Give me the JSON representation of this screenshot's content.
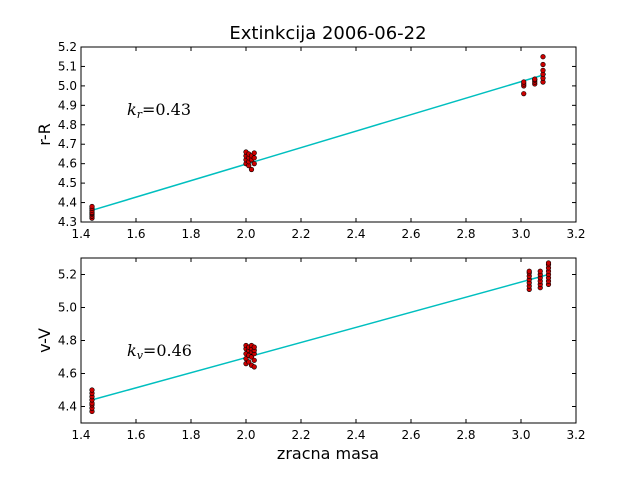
{
  "chart_data": [
    {
      "type": "scatter",
      "title": "Extinkcija 2006-06-22",
      "xlabel": "",
      "ylabel": "r-R",
      "xlim": [
        1.4,
        3.2
      ],
      "ylim": [
        4.3,
        5.2
      ],
      "xticks": [
        "1.4",
        "1.6",
        "1.8",
        "2.0",
        "2.2",
        "2.4",
        "2.6",
        "2.8",
        "3.0",
        "3.2"
      ],
      "yticks": [
        "4.3",
        "4.4",
        "4.5",
        "4.6",
        "4.7",
        "4.8",
        "4.9",
        "5.0",
        "5.1",
        "5.2"
      ],
      "annotation": {
        "symbol": "k",
        "subscript": "r",
        "rest": "=0.43"
      },
      "marker_color": "#cc0000",
      "line_color": "#00bfbf",
      "fit_line": {
        "x": [
          1.44,
          3.09
        ],
        "y": [
          4.36,
          5.06
        ]
      },
      "series": [
        {
          "points": [
            [
              1.44,
              4.32
            ],
            [
              1.44,
              4.33
            ],
            [
              1.44,
              4.34
            ],
            [
              1.44,
              4.345
            ],
            [
              1.44,
              4.35
            ],
            [
              1.44,
              4.36
            ],
            [
              1.44,
              4.37
            ],
            [
              1.44,
              4.38
            ],
            [
              2.0,
              4.6
            ],
            [
              2.0,
              4.62
            ],
            [
              2.0,
              4.64
            ],
            [
              2.0,
              4.66
            ],
            [
              2.01,
              4.59
            ],
            [
              2.01,
              4.61
            ],
            [
              2.01,
              4.63
            ],
            [
              2.01,
              4.65
            ],
            [
              2.02,
              4.57
            ],
            [
              2.02,
              4.62
            ],
            [
              2.02,
              4.64
            ],
            [
              2.03,
              4.6
            ],
            [
              2.03,
              4.63
            ],
            [
              2.03,
              4.655
            ],
            [
              3.01,
              4.96
            ],
            [
              3.01,
              5.0
            ],
            [
              3.01,
              5.01
            ],
            [
              3.01,
              5.02
            ],
            [
              3.05,
              5.01
            ],
            [
              3.05,
              5.02
            ],
            [
              3.05,
              5.03
            ],
            [
              3.05,
              5.035
            ],
            [
              3.08,
              5.02
            ],
            [
              3.08,
              5.04
            ],
            [
              3.08,
              5.06
            ],
            [
              3.08,
              5.08
            ],
            [
              3.08,
              5.11
            ],
            [
              3.08,
              5.15
            ]
          ]
        }
      ]
    },
    {
      "type": "scatter",
      "title": "",
      "xlabel": "zracna masa",
      "ylabel": "v-V",
      "xlim": [
        1.4,
        3.2
      ],
      "ylim": [
        4.3,
        5.3
      ],
      "xticks": [
        "1.4",
        "1.6",
        "1.8",
        "2.0",
        "2.2",
        "2.4",
        "2.6",
        "2.8",
        "3.0",
        "3.2"
      ],
      "yticks": [
        "4.4",
        "4.6",
        "4.8",
        "5.0",
        "5.2"
      ],
      "ytick_values": [
        4.4,
        4.6,
        4.8,
        5.0,
        5.2
      ],
      "annotation": {
        "symbol": "k",
        "subscript": "v",
        "rest": "=0.46"
      },
      "marker_color": "#cc0000",
      "line_color": "#00bfbf",
      "fit_line": {
        "x": [
          1.44,
          3.1
        ],
        "y": [
          4.44,
          5.2
        ]
      },
      "series": [
        {
          "points": [
            [
              1.44,
              4.37
            ],
            [
              1.44,
              4.39
            ],
            [
              1.44,
              4.41
            ],
            [
              1.44,
              4.42
            ],
            [
              1.44,
              4.44
            ],
            [
              1.44,
              4.46
            ],
            [
              1.44,
              4.48
            ],
            [
              1.44,
              4.5
            ],
            [
              2.0,
              4.66
            ],
            [
              2.0,
              4.69
            ],
            [
              2.0,
              4.72
            ],
            [
              2.0,
              4.75
            ],
            [
              2.0,
              4.77
            ],
            [
              2.01,
              4.67
            ],
            [
              2.01,
              4.71
            ],
            [
              2.01,
              4.74
            ],
            [
              2.01,
              4.76
            ],
            [
              2.02,
              4.65
            ],
            [
              2.02,
              4.7
            ],
            [
              2.02,
              4.73
            ],
            [
              2.02,
              4.75
            ],
            [
              2.02,
              4.77
            ],
            [
              2.03,
              4.64
            ],
            [
              2.03,
              4.68
            ],
            [
              2.03,
              4.72
            ],
            [
              2.03,
              4.74
            ],
            [
              2.03,
              4.76
            ],
            [
              3.03,
              5.11
            ],
            [
              3.03,
              5.13
            ],
            [
              3.03,
              5.15
            ],
            [
              3.03,
              5.17
            ],
            [
              3.03,
              5.19
            ],
            [
              3.03,
              5.21
            ],
            [
              3.03,
              5.22
            ],
            [
              3.07,
              5.12
            ],
            [
              3.07,
              5.14
            ],
            [
              3.07,
              5.16
            ],
            [
              3.07,
              5.18
            ],
            [
              3.07,
              5.2
            ],
            [
              3.07,
              5.22
            ],
            [
              3.1,
              5.14
            ],
            [
              3.1,
              5.16
            ],
            [
              3.1,
              5.18
            ],
            [
              3.1,
              5.2
            ],
            [
              3.1,
              5.22
            ],
            [
              3.1,
              5.24
            ],
            [
              3.1,
              5.26
            ],
            [
              3.1,
              5.27
            ]
          ]
        }
      ]
    }
  ]
}
